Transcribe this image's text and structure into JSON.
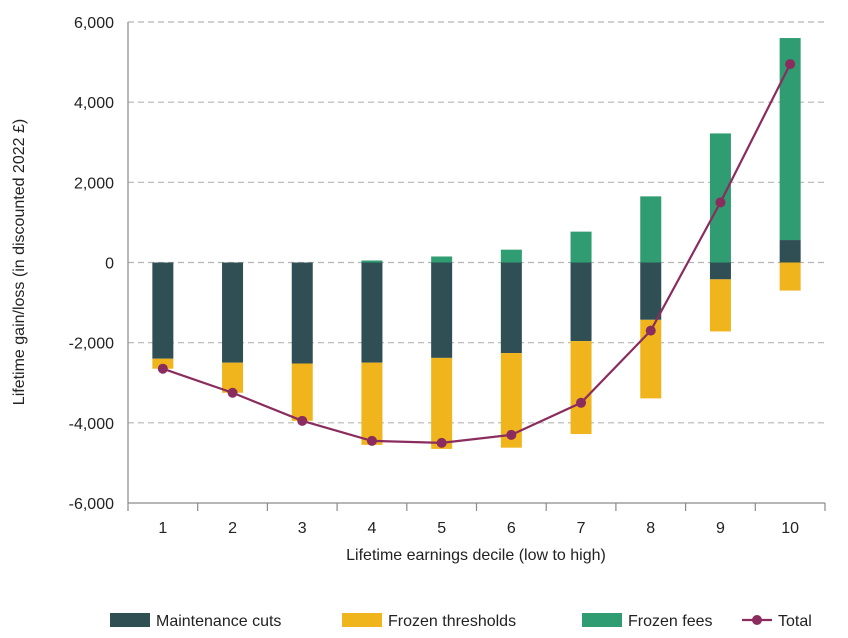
{
  "chart_data": {
    "type": "bar",
    "stacked": true,
    "categories": [
      "1",
      "2",
      "3",
      "4",
      "5",
      "6",
      "7",
      "8",
      "9",
      "10"
    ],
    "series": [
      {
        "name": "Maintenance cuts",
        "kind": "bar",
        "color": "#2f4f55",
        "segments": [
          [
            0,
            -2400
          ],
          [
            0,
            -2500
          ],
          [
            0,
            -2520
          ],
          [
            0,
            -2500
          ],
          [
            0,
            -2380
          ],
          [
            0,
            -2260
          ],
          [
            0,
            -1960
          ],
          [
            0,
            -1430
          ],
          [
            0,
            -420
          ],
          [
            0,
            560
          ]
        ]
      },
      {
        "name": "Frozen thresholds",
        "kind": "bar",
        "color": "#f0b41c",
        "segments": [
          [
            -2400,
            -2650
          ],
          [
            -2500,
            -3250
          ],
          [
            -2520,
            -3950
          ],
          [
            -2500,
            -4550
          ],
          [
            -2380,
            -4650
          ],
          [
            -2260,
            -4620
          ],
          [
            -1960,
            -4280
          ],
          [
            -1430,
            -3390
          ],
          [
            -420,
            -1720
          ],
          [
            0,
            -700
          ]
        ]
      },
      {
        "name": "Frozen fees",
        "kind": "bar",
        "color": "#2f9c72",
        "segments": [
          [
            0,
            0
          ],
          [
            0,
            0
          ],
          [
            0,
            0
          ],
          [
            0,
            50
          ],
          [
            0,
            150
          ],
          [
            0,
            320
          ],
          [
            0,
            770
          ],
          [
            0,
            1650
          ],
          [
            0,
            3220
          ],
          [
            560,
            5600
          ]
        ]
      },
      {
        "name": "Total",
        "kind": "line",
        "color": "#8b2c5e",
        "values": [
          -2650,
          -3250,
          -3950,
          -4450,
          -4500,
          -4300,
          -3500,
          -1700,
          1500,
          4950
        ]
      }
    ],
    "xlabel": "Lifetime earnings decile (low to high)",
    "ylabel": "Lifetime gain/loss (in discounted 2022 £)",
    "ylim": [
      -6000,
      6000
    ],
    "yticks": [
      -6000,
      -4000,
      -2000,
      0,
      2000,
      4000,
      6000
    ],
    "ytick_labels": [
      "-6,000",
      "-4,000",
      "-2,000",
      "0",
      "2,000",
      "4,000",
      "6,000"
    ],
    "grid": true,
    "legend": [
      "Maintenance cuts",
      "Frozen thresholds",
      "Frozen fees",
      "Total"
    ],
    "legend_placement": "bottom"
  }
}
